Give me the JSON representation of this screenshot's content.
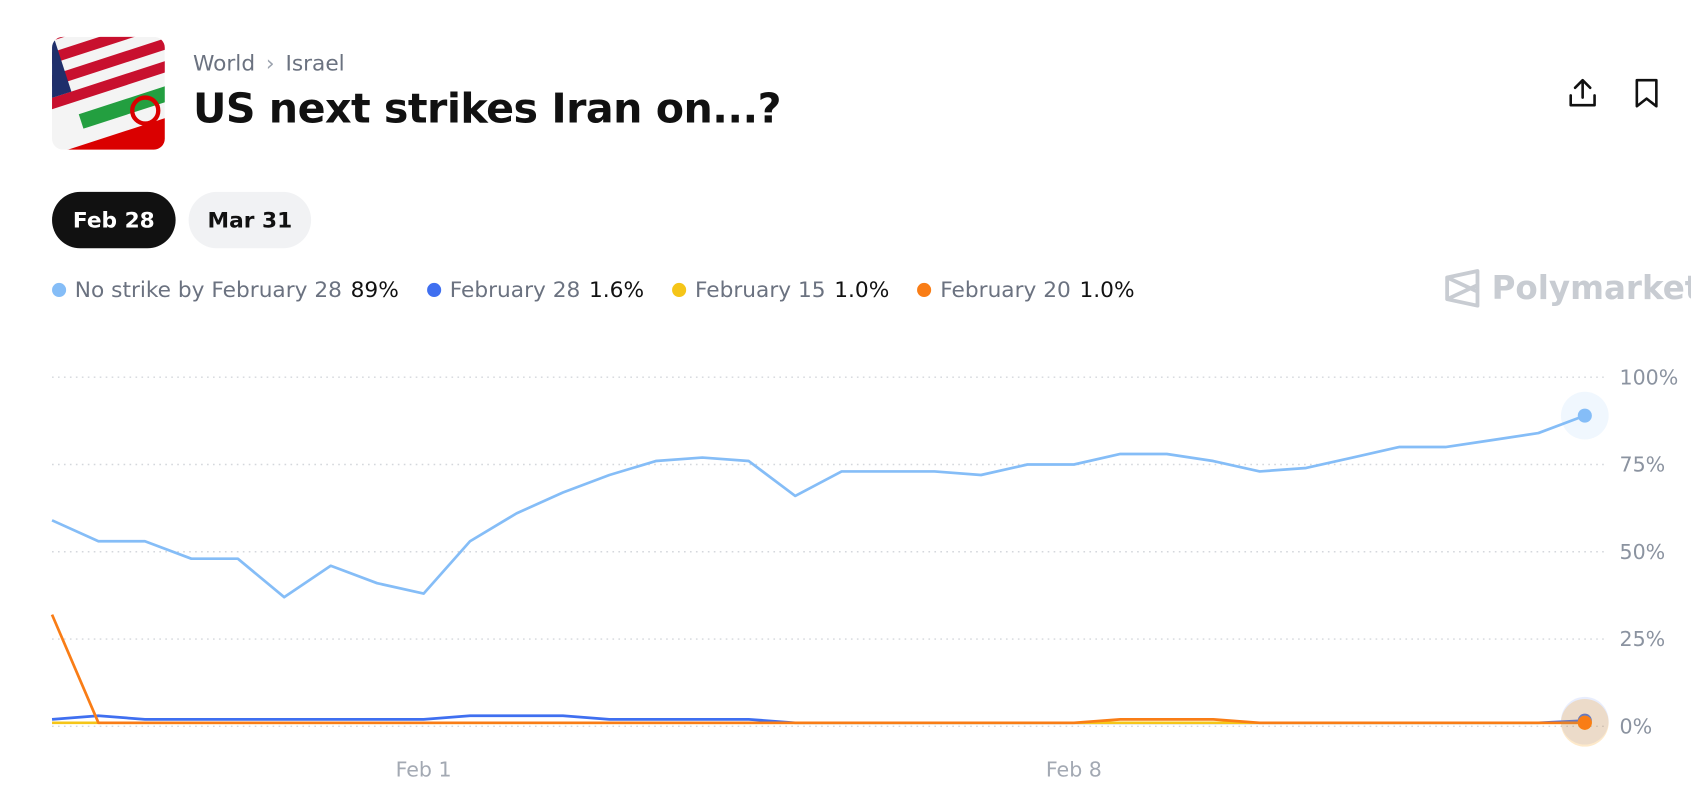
{
  "header": {
    "breadcrumb": [
      "World",
      "Israel"
    ],
    "title": "US next strikes Iran on...?",
    "tabs": [
      "Feb 28",
      "Mar 31"
    ]
  },
  "brand": "Polymarket",
  "chart_data": {
    "type": "line",
    "categories": [
      null,
      null,
      null,
      null,
      null,
      null,
      null,
      null,
      "Feb 1",
      null,
      null,
      null,
      null,
      null,
      null,
      null,
      null,
      null,
      null,
      null,
      null,
      null,
      "Feb 8",
      null,
      null,
      null,
      null,
      null,
      null,
      null,
      null,
      null,
      null,
      null
    ],
    "series": [
      {
        "name": "No strike by February 28",
        "color": "#85bdf7",
        "last_label": "89%",
        "values": [
          59,
          53,
          53,
          48,
          48,
          37,
          46,
          41,
          38,
          53,
          61,
          67,
          72,
          76,
          77,
          76,
          66,
          73,
          73,
          73,
          72,
          75,
          75,
          78,
          78,
          76,
          73,
          74,
          77,
          80,
          80,
          82,
          84,
          89
        ]
      },
      {
        "name": "February 28",
        "color": "#3f6ff0",
        "last_label": "1.6%",
        "values": [
          2,
          3,
          2,
          2,
          2,
          2,
          2,
          2,
          2,
          3,
          3,
          3,
          2,
          2,
          2,
          2,
          1,
          1,
          1,
          1,
          1,
          1,
          1,
          1,
          1,
          1,
          1,
          1,
          1,
          1,
          1,
          1,
          1,
          1.6
        ]
      },
      {
        "name": "February 15",
        "color": "#f5c518",
        "last_label": "1.0%",
        "values": [
          1,
          1,
          1,
          1,
          1,
          1,
          1,
          1,
          1,
          1,
          1,
          1,
          1,
          1,
          1,
          1,
          1,
          1,
          1,
          1,
          1,
          1,
          1,
          1,
          1,
          1,
          1,
          1,
          1,
          1,
          1,
          1,
          1,
          1
        ]
      },
      {
        "name": "February 20",
        "color": "#f97d16",
        "last_label": "1.0%",
        "values": [
          32,
          1,
          1,
          1,
          1,
          1,
          1,
          1,
          1,
          1,
          1,
          1,
          1,
          1,
          1,
          1,
          1,
          1,
          1,
          1,
          1,
          1,
          1,
          2,
          2,
          2,
          1,
          1,
          1,
          1,
          1,
          1,
          1,
          1
        ]
      }
    ],
    "ylim": [
      0,
      100
    ],
    "yticks": [
      {
        "value": 0,
        "label": "0%"
      },
      {
        "value": 25,
        "label": "25%"
      },
      {
        "value": 50,
        "label": "50%"
      },
      {
        "value": 75,
        "label": "75%"
      },
      {
        "value": 100,
        "label": "100%"
      }
    ],
    "grid": true
  }
}
